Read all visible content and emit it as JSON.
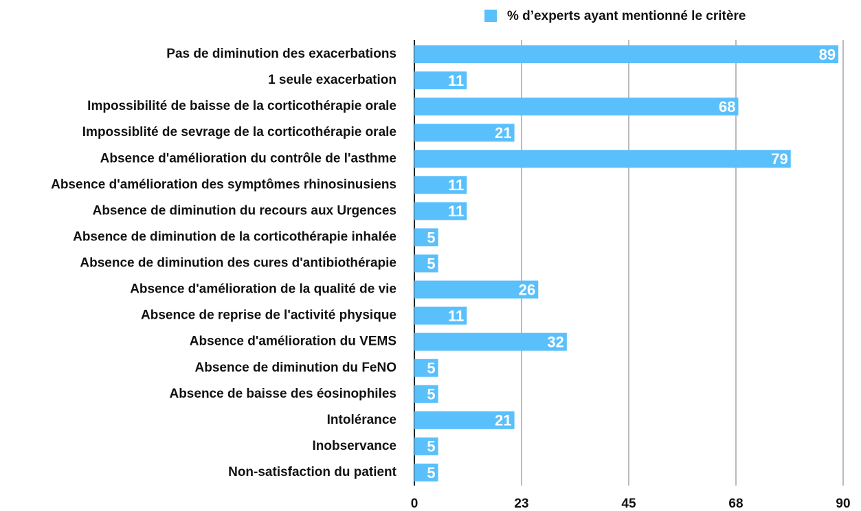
{
  "chart_data": {
    "type": "bar",
    "orientation": "horizontal",
    "categories": [
      "Pas de diminution des exacerbations",
      "1 seule exacerbation",
      "Impossibilité de baisse de la corticothérapie orale",
      "Impossiblité de sevrage de la corticothérapie orale",
      "Absence d'amélioration du contrôle de l'asthme",
      "Absence d'amélioration des symptômes rhinosinusiens",
      "Absence de diminution du recours aux Urgences",
      "Absence de diminution de la corticothérapie inhalée",
      "Absence de diminution des cures d'antibiothérapie",
      "Absence d'amélioration de la qualité de vie",
      "Absence de reprise de l'activité physique",
      "Absence d'amélioration du VEMS",
      "Absence de diminution du FeNO",
      "Absence de baisse des éosinophiles",
      "Intolérance",
      "Inobservance",
      "Non-satisfaction du patient"
    ],
    "series": [
      {
        "name": "% d’experts ayant mentionné le critère",
        "color": "#5ac0fc",
        "values": [
          89,
          11,
          68,
          21,
          79,
          11,
          11,
          5,
          5,
          26,
          11,
          32,
          5,
          5,
          21,
          5,
          5
        ]
      }
    ],
    "xlim": [
      0,
      90
    ],
    "xticks": [
      0,
      {
        "value": 22.5,
        "label": "23"
      },
      45,
      {
        "value": 67.5,
        "label": "68"
      },
      90
    ],
    "grid": true,
    "legend": "top"
  }
}
